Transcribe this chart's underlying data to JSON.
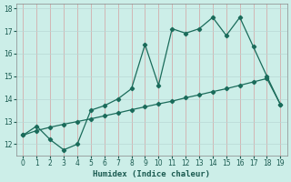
{
  "title": "",
  "xlabel": "Humidex (Indice chaleur)",
  "background_color": "#cceee8",
  "grid_color_v": "#d4a0a0",
  "grid_color_h": "#b8d8d4",
  "line_color": "#1a6b5a",
  "x_line1": [
    0,
    1,
    2,
    3,
    4,
    5,
    6,
    7,
    8,
    9,
    10,
    11,
    12,
    13,
    14,
    15,
    16,
    17,
    18,
    19
  ],
  "y_line1": [
    12.4,
    12.8,
    12.2,
    11.75,
    12.0,
    13.5,
    13.7,
    14.0,
    14.45,
    16.4,
    14.6,
    17.1,
    16.9,
    17.1,
    17.6,
    16.8,
    17.6,
    16.3,
    15.0,
    13.75
  ],
  "x_markers1": [
    0,
    1,
    2,
    3,
    4,
    5,
    6,
    7,
    8,
    9,
    10,
    11,
    12,
    13,
    14,
    15,
    16,
    17,
    18,
    19
  ],
  "y_markers1": [
    12.4,
    12.8,
    12.2,
    11.75,
    12.0,
    13.5,
    13.7,
    14.0,
    14.45,
    16.4,
    14.6,
    17.1,
    16.9,
    17.1,
    17.6,
    16.8,
    17.6,
    16.3,
    15.0,
    13.75
  ],
  "x_line2": [
    0,
    1,
    2,
    3,
    4,
    5,
    6,
    7,
    8,
    9,
    10,
    11,
    12,
    13,
    14,
    15,
    16,
    17,
    18,
    19
  ],
  "y_line2": [
    12.4,
    12.6,
    12.75,
    12.88,
    13.0,
    13.12,
    13.25,
    13.38,
    13.52,
    13.65,
    13.78,
    13.9,
    14.05,
    14.18,
    14.32,
    14.45,
    14.6,
    14.75,
    14.9,
    13.75
  ],
  "xlim": [
    -0.5,
    19.5
  ],
  "ylim": [
    11.5,
    18.2
  ],
  "yticks": [
    12,
    13,
    14,
    15,
    16,
    17,
    18
  ],
  "xticks": [
    0,
    1,
    2,
    3,
    4,
    5,
    6,
    7,
    8,
    9,
    10,
    11,
    12,
    13,
    14,
    15,
    16,
    17,
    18,
    19
  ]
}
